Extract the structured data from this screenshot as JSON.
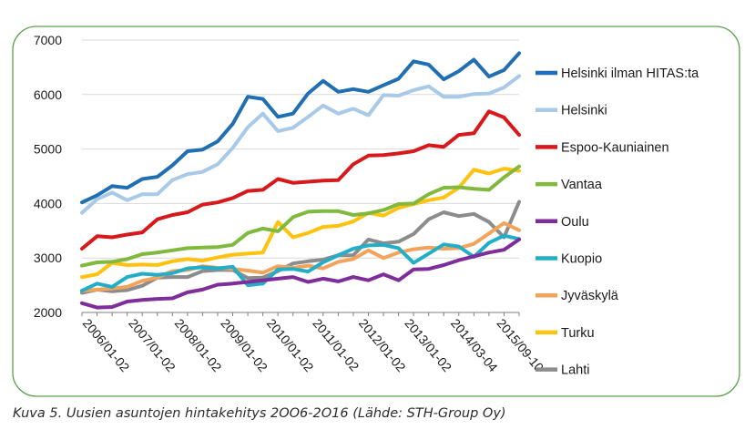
{
  "caption": "Kuva 5. Uusien asuntojen hintakehitys 2OO6-2O16 (Lähde: STH-Group Oy)",
  "colors": {
    "frame": "#5aa04a",
    "gridline": "#d9d9d9",
    "axis": "#7f7f7f"
  },
  "chart_data": {
    "type": "line",
    "title": "",
    "xlabel": "",
    "ylabel": "",
    "ylim": [
      2000,
      7000
    ],
    "yticks": [
      2000,
      3000,
      4000,
      5000,
      6000,
      7000
    ],
    "grid": true,
    "legend_position": "right",
    "x_tick_labels": [
      "2006/01-02",
      "2007/01-02",
      "2008/01-02",
      "2009/01-02",
      "2010/01-02",
      "2011/01-02",
      "2012/01-02",
      "2013/01-02",
      "2014/03-04",
      "2015/09-10"
    ],
    "series": [
      {
        "name": "Helsinki ilman HITAS:ta",
        "color": "#1f6fb2",
        "values": [
          4020,
          4150,
          4320,
          4290,
          4450,
          4490,
          4700,
          4960,
          4990,
          5140,
          5460,
          5960,
          5920,
          5590,
          5650,
          6020,
          6250,
          6050,
          6100,
          6050,
          6170,
          6290,
          6610,
          6550,
          6280,
          6430,
          6640,
          6330,
          6450,
          6760
        ]
      },
      {
        "name": "Helsinki",
        "color": "#a9c9e8",
        "values": [
          3830,
          4080,
          4200,
          4060,
          4170,
          4170,
          4430,
          4540,
          4580,
          4720,
          5020,
          5400,
          5650,
          5330,
          5390,
          5590,
          5800,
          5650,
          5740,
          5620,
          5990,
          5980,
          6080,
          6150,
          5960,
          5960,
          6010,
          6020,
          6130,
          6340
        ]
      },
      {
        "name": "Espoo-Kauniainen",
        "color": "#d7191c",
        "values": [
          3170,
          3400,
          3380,
          3430,
          3470,
          3710,
          3790,
          3840,
          3980,
          4020,
          4100,
          4230,
          4250,
          4450,
          4380,
          4400,
          4420,
          4430,
          4720,
          4880,
          4890,
          4920,
          4960,
          5070,
          5040,
          5260,
          5290,
          5690,
          5580,
          5260
        ]
      },
      {
        "name": "Vantaa",
        "color": "#80b93e",
        "values": [
          2860,
          2920,
          2930,
          2980,
          3070,
          3100,
          3140,
          3180,
          3190,
          3200,
          3240,
          3460,
          3540,
          3490,
          3750,
          3850,
          3860,
          3860,
          3790,
          3820,
          3880,
          3990,
          4000,
          4170,
          4290,
          4300,
          4270,
          4250,
          4480,
          4680
        ]
      },
      {
        "name": "Oulu",
        "color": "#7f2d9a",
        "values": [
          2170,
          2090,
          2100,
          2200,
          2230,
          2250,
          2260,
          2370,
          2420,
          2510,
          2530,
          2560,
          2590,
          2620,
          2650,
          2560,
          2620,
          2570,
          2650,
          2590,
          2700,
          2590,
          2790,
          2800,
          2870,
          2960,
          3030,
          3100,
          3150,
          3340
        ]
      },
      {
        "name": "Kuopio",
        "color": "#23aec7",
        "values": [
          2400,
          2530,
          2470,
          2650,
          2710,
          2690,
          2720,
          2810,
          2830,
          2810,
          2840,
          2500,
          2530,
          2790,
          2800,
          2750,
          2920,
          3050,
          3170,
          3230,
          3240,
          3180,
          2910,
          3080,
          3250,
          3210,
          3020,
          3280,
          3410,
          3350
        ]
      },
      {
        "name": "Jyväskylä",
        "color": "#f4a35a",
        "values": [
          2400,
          2420,
          2440,
          2470,
          2580,
          2640,
          2760,
          2780,
          2850,
          2820,
          2800,
          2770,
          2730,
          2850,
          2820,
          2860,
          2810,
          2930,
          2980,
          3140,
          3000,
          3100,
          3160,
          3190,
          3170,
          3180,
          3260,
          3450,
          3640,
          3510
        ]
      },
      {
        "name": "Turku",
        "color": "#ffc20e",
        "values": [
          2650,
          2700,
          2910,
          2870,
          2880,
          2870,
          2940,
          2980,
          2950,
          3010,
          3060,
          3080,
          3100,
          3660,
          3380,
          3460,
          3570,
          3590,
          3670,
          3830,
          3780,
          3920,
          3990,
          4060,
          4110,
          4290,
          4620,
          4550,
          4640,
          4600
        ]
      },
      {
        "name": "Lahti",
        "color": "#8c8c8c",
        "values": [
          2360,
          2420,
          2390,
          2410,
          2490,
          2640,
          2650,
          2650,
          2760,
          2780,
          2780,
          2630,
          2640,
          2760,
          2900,
          2940,
          2970,
          3050,
          3050,
          3340,
          3270,
          3300,
          3440,
          3710,
          3840,
          3770,
          3810,
          3660,
          3380,
          4030
        ]
      }
    ]
  }
}
